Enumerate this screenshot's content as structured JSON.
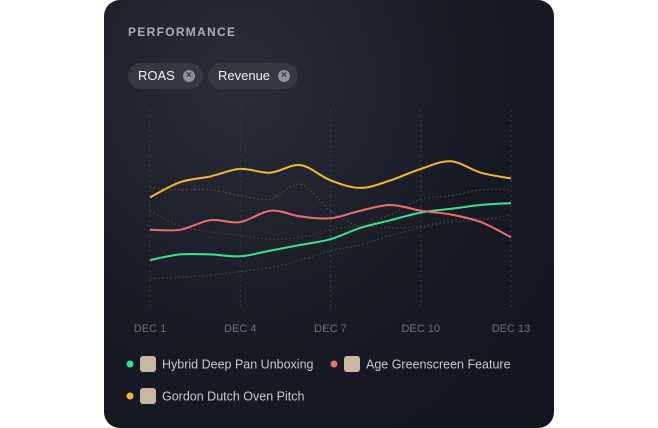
{
  "header": {
    "title": "PERFORMANCE"
  },
  "filters": [
    "ROAS",
    "Revenue"
  ],
  "chart_data": {
    "type": "line",
    "categories": [
      "DEC 1",
      null,
      null,
      "DEC 4",
      null,
      null,
      "DEC 7",
      null,
      null,
      "DEC 10",
      null,
      null,
      "DEC 13"
    ],
    "ylim": [
      0,
      100
    ],
    "grid": true,
    "series": [
      {
        "name": "Hybrid Deep Pan Unboxing",
        "color": "#3ee08f",
        "values": [
          21,
          24,
          24,
          23,
          26,
          29,
          32,
          38,
          42,
          46,
          48,
          50,
          51
        ],
        "previous_values": [
          11,
          12,
          13,
          15,
          17,
          21,
          26,
          29,
          34,
          38,
          41,
          42,
          45
        ]
      },
      {
        "name": "Age Greenscreen Feature",
        "color": "#e8706f",
        "values": [
          37,
          37,
          42,
          41,
          47,
          44,
          43,
          47,
          50,
          47,
          45,
          41,
          33
        ],
        "previous_values": [
          47,
          39,
          36,
          34,
          32,
          33,
          37,
          39,
          38,
          39,
          42,
          43,
          42
        ]
      },
      {
        "name": "Gordon Dutch Oven Pitch",
        "color": "#f5b82e",
        "values": [
          54,
          62,
          65,
          69,
          67,
          71,
          63,
          59,
          63,
          69,
          73,
          67,
          64
        ],
        "previous_values": [
          59,
          58,
          58,
          55,
          53,
          61,
          47,
          39,
          45,
          53,
          55,
          58,
          58
        ]
      }
    ]
  }
}
